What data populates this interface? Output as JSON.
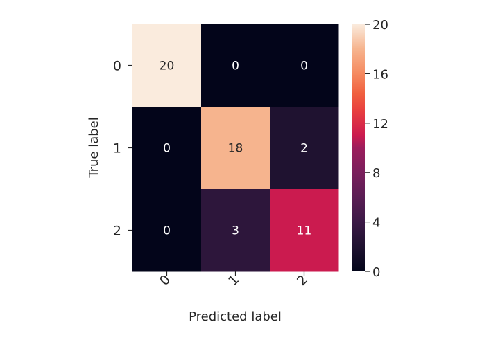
{
  "chart_data": {
    "type": "heatmap",
    "title": "",
    "xlabel": "Predicted label",
    "ylabel": "True label",
    "x_categories": [
      "0",
      "1",
      "2"
    ],
    "y_categories": [
      "0",
      "1",
      "2"
    ],
    "values": [
      [
        20,
        0,
        0
      ],
      [
        0,
        18,
        2
      ],
      [
        0,
        3,
        11
      ]
    ],
    "colorbar": {
      "range": [
        0,
        20
      ],
      "ticks": [
        "0",
        "4",
        "8",
        "12",
        "16",
        "20"
      ],
      "colormap": "rocket"
    },
    "grid": false,
    "legend": "colorbar-right"
  }
}
